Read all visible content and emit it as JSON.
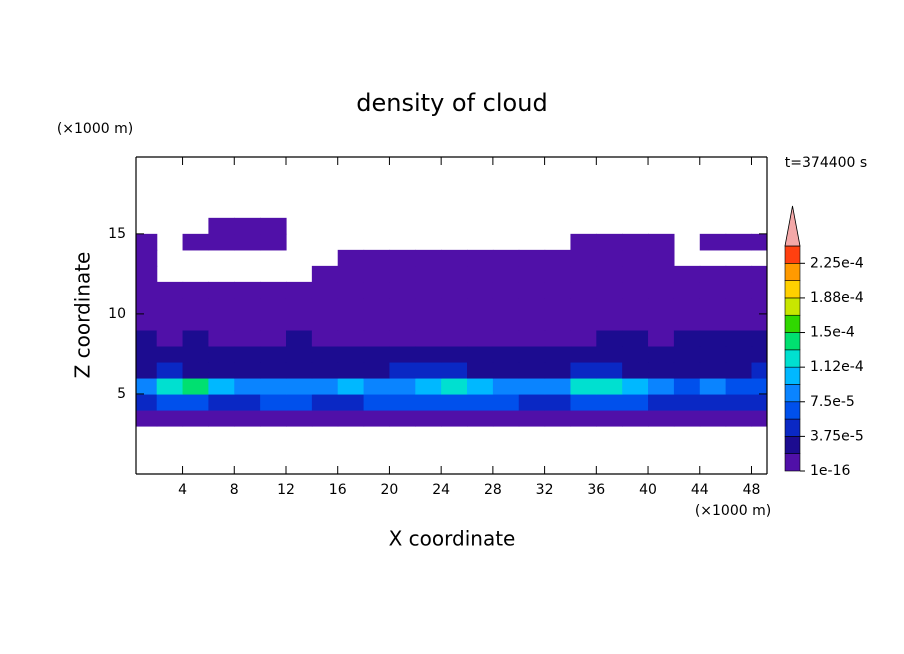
{
  "chart_data": {
    "type": "contour",
    "title": "density of cloud",
    "xlabel": "X coordinate",
    "ylabel": "Z coordinate",
    "x_unit": "(×1000 m)",
    "y_unit": "(×1000 m)",
    "annotation": "t=374400 s",
    "xlim": [
      0.4,
      49.2
    ],
    "ylim": [
      0,
      19.8
    ],
    "xticks": [
      4,
      8,
      12,
      16,
      20,
      24,
      28,
      32,
      36,
      40,
      44,
      48
    ],
    "yticks": [
      5,
      10,
      15
    ],
    "x": [
      1,
      3,
      5,
      7,
      9,
      11,
      13,
      15,
      17,
      19,
      21,
      23,
      25,
      27,
      29,
      31,
      33,
      35,
      37,
      39,
      41,
      43,
      45,
      47,
      49
    ],
    "z": [
      3.5,
      4.5,
      5.5,
      6.5,
      7.5,
      8.5,
      9.5,
      10.5,
      11.5,
      12.5,
      13.5,
      14.5,
      15.5
    ],
    "field": [
      [
        8e-06,
        8e-06,
        8e-06,
        8e-06,
        8e-06,
        8e-06,
        8e-06,
        8e-06,
        8e-06,
        8e-06,
        8e-06,
        8e-06,
        8e-06,
        8e-06,
        8e-06,
        8e-06,
        8e-06,
        8e-06,
        8e-06,
        8e-06,
        8e-06,
        8e-06,
        8e-06,
        8e-06,
        8e-06
      ],
      [
        5e-05,
        6e-05,
        6e-05,
        5e-05,
        5e-05,
        6e-05,
        6e-05,
        5e-05,
        5e-05,
        6e-05,
        6e-05,
        6e-05,
        6e-05,
        6e-05,
        6e-05,
        5e-05,
        5e-05,
        6e-05,
        6e-05,
        6e-05,
        5e-05,
        4e-05,
        5e-05,
        4e-05,
        4e-05
      ],
      [
        9e-05,
        0.00013,
        0.00014,
        0.0001,
        8e-05,
        9e-05,
        8e-05,
        9e-05,
        0.0001,
        9e-05,
        9e-05,
        0.00011,
        0.00013,
        0.0001,
        9e-05,
        8e-05,
        9e-05,
        0.00012,
        0.00013,
        0.0001,
        8e-05,
        6e-05,
        8e-05,
        7e-05,
        6e-05
      ],
      [
        3e-05,
        4e-05,
        3e-05,
        3e-05,
        3e-05,
        2.5e-05,
        3e-05,
        3e-05,
        3e-05,
        3e-05,
        4e-05,
        4e-05,
        4e-05,
        3e-05,
        3e-05,
        3e-05,
        3e-05,
        4e-05,
        4e-05,
        3e-05,
        3e-05,
        3e-05,
        3e-05,
        3e-05,
        4e-05
      ],
      [
        2.5e-05,
        2e-05,
        2.5e-05,
        2e-05,
        2e-05,
        2e-05,
        2.5e-05,
        2e-05,
        2e-05,
        2.5e-05,
        2e-05,
        2e-05,
        2e-05,
        2e-05,
        2e-05,
        2e-05,
        2e-05,
        2e-05,
        2.5e-05,
        2e-05,
        2e-05,
        2.5e-05,
        2e-05,
        2e-05,
        2.5e-05
      ],
      [
        2e-05,
        1.5e-05,
        2e-05,
        1.5e-05,
        1.5e-05,
        1.5e-05,
        2e-05,
        1.5e-05,
        1.5e-05,
        1.5e-05,
        1.5e-05,
        1.5e-05,
        1.5e-05,
        1.5e-05,
        1.5e-05,
        1.5e-05,
        1.5e-05,
        1.5e-05,
        2e-05,
        2e-05,
        1.5e-05,
        2e-05,
        2e-05,
        2e-05,
        2e-05
      ],
      [
        1e-05,
        1e-05,
        1e-05,
        1e-05,
        1e-05,
        1e-05,
        1e-05,
        1e-05,
        1e-05,
        1e-05,
        1e-05,
        1e-05,
        1e-05,
        1e-05,
        1e-05,
        1e-05,
        1e-05,
        1e-05,
        1e-05,
        1e-05,
        1e-05,
        1e-05,
        1e-05,
        1e-05,
        1e-05
      ],
      [
        5e-06,
        5e-06,
        5e-06,
        5e-06,
        5e-06,
        5e-06,
        5e-06,
        5e-06,
        5e-06,
        5e-06,
        5e-06,
        5e-06,
        5e-06,
        5e-06,
        5e-06,
        5e-06,
        5e-06,
        5e-06,
        5e-06,
        5e-06,
        5e-06,
        5e-06,
        5e-06,
        5e-06,
        5e-06
      ],
      [
        3e-06,
        3e-06,
        3e-06,
        3e-06,
        3e-06,
        3e-06,
        3e-06,
        3e-06,
        3e-06,
        3e-06,
        3e-06,
        3e-06,
        3e-06,
        3e-06,
        3e-06,
        3e-06,
        3e-06,
        3e-06,
        3e-06,
        3e-06,
        3e-06,
        3e-06,
        3e-06,
        3e-06,
        3e-06
      ],
      [
        3e-06,
        null,
        null,
        null,
        null,
        null,
        null,
        3e-06,
        3e-06,
        3e-06,
        3e-06,
        3e-06,
        3e-06,
        3e-06,
        3e-06,
        3e-06,
        3e-06,
        3e-06,
        3e-06,
        3e-06,
        3e-06,
        3e-06,
        3e-06,
        3e-06,
        3e-06
      ],
      [
        3e-06,
        null,
        null,
        null,
        null,
        null,
        null,
        null,
        3e-06,
        3e-06,
        3e-06,
        3e-06,
        3e-06,
        3e-06,
        3e-06,
        3e-06,
        3e-06,
        3e-06,
        3e-06,
        3e-06,
        3e-06,
        null,
        null,
        null,
        null
      ],
      [
        3e-06,
        null,
        3e-06,
        3e-06,
        3e-06,
        3e-06,
        null,
        null,
        null,
        null,
        null,
        null,
        null,
        null,
        null,
        null,
        null,
        3e-06,
        3e-06,
        3e-06,
        3e-06,
        null,
        3e-06,
        3e-06,
        3e-06
      ],
      [
        null,
        null,
        null,
        3e-06,
        3e-06,
        3e-06,
        null,
        null,
        null,
        null,
        null,
        null,
        null,
        null,
        null,
        null,
        null,
        null,
        null,
        null,
        null,
        null,
        null,
        null,
        null
      ]
    ],
    "levels": [
      1e-16,
      1.875e-05,
      3.75e-05,
      5.625e-05,
      7.5e-05,
      9.375e-05,
      0.0001125,
      0.00013125,
      0.00015,
      0.00016875,
      0.0001875,
      0.00020625,
      0.000225,
      0.00024375
    ],
    "colors": [
      "#5010a8",
      "#1c0c90",
      "#0a28c4",
      "#0050ec",
      "#0a84ff",
      "#00b8ff",
      "#00e0d0",
      "#00e070",
      "#30d800",
      "#c8e600",
      "#ffd000",
      "#ff9a00",
      "#ff4010",
      "#f4a8a8"
    ],
    "cticks": [
      1e-16,
      {
        "value": 3.75e-05,
        "label": "3.75e-5"
      },
      {
        "value": 7.5e-05,
        "label": "7.5e-5"
      },
      {
        "value": 0.0001125,
        "label": "1.12e-4"
      },
      {
        "value": 0.00015,
        "label": "1.5e-4"
      },
      {
        "value": 0.0001875,
        "label": "1.88e-4"
      },
      {
        "value": 0.000225,
        "label": "2.25e-4"
      }
    ]
  }
}
